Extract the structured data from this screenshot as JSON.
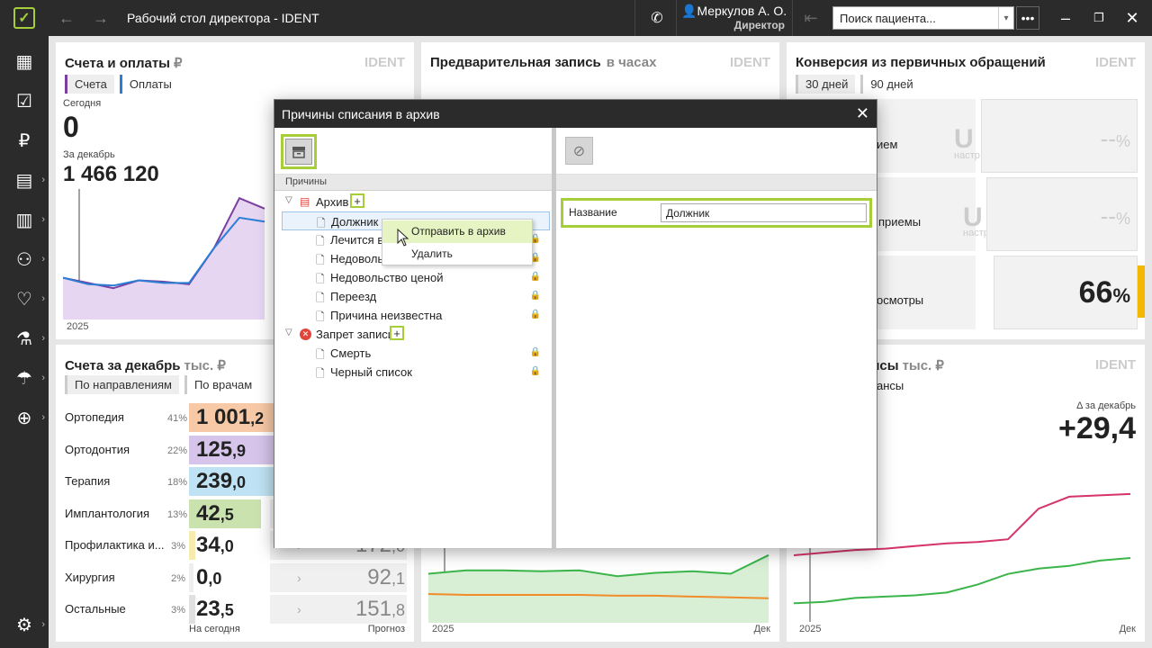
{
  "app": {
    "title": "Рабочий стол директора - IDENT"
  },
  "user": {
    "name": "Меркулов А. О.",
    "role": "Директор"
  },
  "search": {
    "placeholder": "Поиск пациента..."
  },
  "cards": {
    "invoices": {
      "title": "Счета и оплаты",
      "unit": "₽",
      "brand": "IDENT",
      "tabs": [
        "Счета",
        "Оплаты"
      ],
      "today_label": "Сегодня",
      "today_value": "0",
      "month_label": "За декабрь",
      "month_value": "1 466 120",
      "x_label": "2025"
    },
    "appointments": {
      "title": "Предварительная запись",
      "unit": "в часах",
      "brand": "IDENT",
      "x_start": "2025",
      "x_end": "Дек"
    },
    "conversion": {
      "title": "Конверсия из первичных обращений",
      "brand": "IDENT",
      "tabs": [
        "30 дней",
        "90 дней"
      ],
      "rows": [
        {
          "label": "ием",
          "value": "--",
          "pct": "%"
        },
        {
          "label": "приемы",
          "value": "--",
          "pct": "%"
        },
        {
          "label": "осмотры",
          "value": "66",
          "pct": "%"
        }
      ],
      "ghost": "настр"
    },
    "bills": {
      "title": "Счета за декабрь",
      "unit": "тыс. ₽",
      "tabs": [
        "По направлениям",
        "По врачам"
      ],
      "footer_left": "На сегодня",
      "footer_right": "Прогноз",
      "rows": [
        {
          "label": "Ортопедия",
          "pct": "41%",
          "int": "1 001",
          "dec": ",2",
          "color": "#f8c9a6",
          "fill": 1.0
        },
        {
          "label": "Ортодонтия",
          "pct": "22%",
          "int": "125",
          "dec": ",9",
          "color": "#d6c4ea",
          "fill": 0.5
        },
        {
          "label": "Терапия",
          "pct": "18%",
          "int": "239",
          "dec": ",0",
          "color": "#bfe3f4",
          "fill": 0.97
        },
        {
          "label": "Имплантология",
          "pct": "13%",
          "int": "42",
          "dec": ",5",
          "color": "#c9e2ae",
          "fill": 0.33
        },
        {
          "label": "Профилактика и...",
          "pct": "3%",
          "int": "34",
          "dec": ",0",
          "color": "#f6ecb0",
          "fill": 0.03,
          "fc_int": "172",
          "fc_dec": ",0"
        },
        {
          "label": "Хирургия",
          "pct": "2%",
          "int": "0",
          "dec": ",0",
          "color": "#eeeeee",
          "fill": 0.02,
          "fc_int": "92",
          "fc_dec": ",1"
        },
        {
          "label": "Остальные",
          "pct": "3%",
          "int": "23",
          "dec": ",5",
          "color": "#e0e0e0",
          "fill": 0.03,
          "fc_int": "151",
          "fc_dec": ",8"
        }
      ]
    },
    "balance": {
      "title": "ансы",
      "unit": "тыс. ₽",
      "brand": "IDENT",
      "tab": "ансы",
      "delta_label": "Δ за декабрь",
      "delta_value": "+29,4",
      "x_start": "2025",
      "x_end": "Дек"
    }
  },
  "chart_data": [
    {
      "type": "area",
      "title": "Счета и оплаты",
      "x": [
        1,
        2,
        3,
        4,
        5,
        6,
        7,
        8,
        9,
        10,
        11,
        12
      ],
      "series": [
        {
          "name": "Счета",
          "values": [
            32,
            28,
            24,
            30,
            29,
            27,
            55,
            93,
            85,
            null,
            null,
            null
          ]
        },
        {
          "name": "Оплаты",
          "values": [
            32,
            27,
            26,
            30,
            28,
            28,
            55,
            78,
            75,
            null,
            null,
            null
          ]
        }
      ],
      "xlabel": "2025"
    },
    {
      "type": "area",
      "title": "Предварительная запись",
      "series": [
        {
          "values": [
            58,
            62,
            62,
            61,
            62,
            55,
            59,
            61,
            58,
            80
          ]
        },
        {
          "values": [
            34,
            33,
            33,
            33,
            33,
            32,
            32,
            31,
            30,
            29
          ]
        }
      ],
      "xlabel": "2025"
    },
    {
      "type": "line",
      "title": "Балансы",
      "series": [
        {
          "values": [
            50,
            52,
            54,
            55,
            57,
            59,
            60,
            62,
            85,
            94,
            95,
            96
          ]
        },
        {
          "values": [
            14,
            15,
            18,
            19,
            20,
            22,
            28,
            36,
            40,
            42,
            46,
            48
          ]
        }
      ],
      "xlabel": "2025"
    }
  ],
  "modal": {
    "title": "Причины списания в архив",
    "left_header": "Причины",
    "groups": [
      {
        "label": "Архив",
        "items": [
          "Должник",
          "Лечится в",
          "Недовольс",
          "Недовольство ценой",
          "Переезд",
          "Причина неизвестна"
        ]
      },
      {
        "label": "Запрет записи",
        "items": [
          "Смерть",
          "Черный список"
        ]
      }
    ],
    "context_menu": [
      "Отправить в архив",
      "Удалить"
    ],
    "field": {
      "label": "Название",
      "value": "Должник"
    }
  }
}
